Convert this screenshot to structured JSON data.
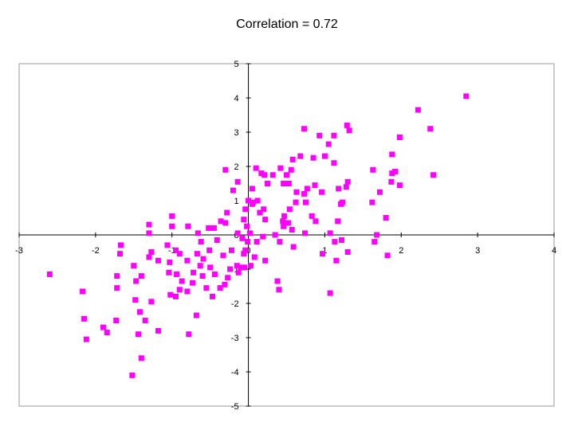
{
  "chart_data": {
    "type": "scatter",
    "title": "Correlation = 0.72",
    "xlabel": "",
    "ylabel": "",
    "xlim": [
      -3,
      4
    ],
    "ylim": [
      -5,
      5
    ],
    "x_ticks": [
      "-3",
      "-2",
      "-1",
      "0",
      "1",
      "2",
      "3",
      "4"
    ],
    "y_ticks": [
      "5",
      "4",
      "3",
      "2",
      "1",
      "0",
      "-1",
      "-2",
      "-3",
      "-4",
      "-5"
    ],
    "grid": false,
    "legend": "none",
    "marker": "square",
    "colors": {
      "marker": "#FF00FF",
      "axes": "#000000",
      "frame": "#9a9a9a",
      "background": "#ffffff"
    },
    "series": [
      {
        "points": [
          [
            2.85,
            4.05
          ],
          [
            2.22,
            3.65
          ],
          [
            2.38,
            3.1
          ],
          [
            2.42,
            1.75
          ],
          [
            1.98,
            2.85
          ],
          [
            1.88,
            2.35
          ],
          [
            1.92,
            1.85
          ],
          [
            1.88,
            1.8
          ],
          [
            1.98,
            1.45
          ],
          [
            1.87,
            1.55
          ],
          [
            1.72,
            1.25
          ],
          [
            1.8,
            0.5
          ],
          [
            1.82,
            -0.6
          ],
          [
            1.63,
            1.9
          ],
          [
            1.62,
            0.95
          ],
          [
            1.68,
            0.0
          ],
          [
            1.65,
            -0.2
          ],
          [
            1.29,
            3.2
          ],
          [
            1.32,
            3.05
          ],
          [
            1.3,
            1.55
          ],
          [
            1.28,
            1.4
          ],
          [
            1.23,
            0.95
          ],
          [
            1.21,
            0.9
          ],
          [
            1.22,
            -0.15
          ],
          [
            1.3,
            -0.5
          ],
          [
            1.12,
            2.9
          ],
          [
            1.12,
            2.1
          ],
          [
            1.18,
            1.35
          ],
          [
            1.17,
            0.4
          ],
          [
            1.13,
            -0.2
          ],
          [
            1.15,
            -0.75
          ],
          [
            1.05,
            2.65
          ],
          [
            1.0,
            2.3
          ],
          [
            0.93,
            2.9
          ],
          [
            0.85,
            2.25
          ],
          [
            0.96,
            1.25
          ],
          [
            0.87,
            1.45
          ],
          [
            0.77,
            1.35
          ],
          [
            0.73,
            1.2
          ],
          [
            0.75,
            0.95
          ],
          [
            0.83,
            0.55
          ],
          [
            0.88,
            0.4
          ],
          [
            1.07,
            0.05
          ],
          [
            0.97,
            -0.55
          ],
          [
            1.07,
            -1.7
          ],
          [
            0.73,
            3.1
          ],
          [
            0.68,
            2.3
          ],
          [
            0.58,
            2.2
          ],
          [
            0.56,
            1.9
          ],
          [
            0.42,
            1.95
          ],
          [
            0.5,
            1.75
          ],
          [
            0.46,
            1.5
          ],
          [
            0.53,
            1.5
          ],
          [
            0.63,
            1.25
          ],
          [
            0.62,
            0.95
          ],
          [
            0.54,
            0.75
          ],
          [
            0.47,
            0.55
          ],
          [
            0.45,
            0.4
          ],
          [
            0.52,
            0.35
          ],
          [
            0.46,
            0.25
          ],
          [
            0.57,
            0.15
          ],
          [
            0.74,
            0.05
          ],
          [
            0.41,
            -0.2
          ],
          [
            0.59,
            -0.35
          ],
          [
            0.38,
            -1.35
          ],
          [
            0.4,
            -1.6
          ],
          [
            0.32,
            1.75
          ],
          [
            0.21,
            1.75
          ],
          [
            0.17,
            1.8
          ],
          [
            0.1,
            1.95
          ],
          [
            0.25,
            1.5
          ],
          [
            0.05,
            1.35
          ],
          [
            0.12,
            1.0
          ],
          [
            0.06,
            0.95
          ],
          [
            0.15,
            0.65
          ],
          [
            0.2,
            0.75
          ],
          [
            0.22,
            0.45
          ],
          [
            0.35,
            0.0
          ],
          [
            0.19,
            -0.05
          ],
          [
            0.11,
            -0.2
          ],
          [
            0.22,
            -0.75
          ],
          [
            0.08,
            -0.65
          ],
          [
            0.03,
            -0.9
          ],
          [
            0.05,
            0.9
          ],
          [
            0.0,
            1.0
          ],
          [
            -0.04,
            0.75
          ],
          [
            -0.02,
            0.25
          ],
          [
            -0.06,
            0.45
          ],
          [
            0.02,
            0.05
          ],
          [
            -0.01,
            -0.2
          ],
          [
            -0.08,
            -0.1
          ],
          [
            -0.04,
            -0.45
          ],
          [
            -0.06,
            -0.55
          ],
          [
            -0.1,
            -0.95
          ],
          [
            -0.13,
            -1.1
          ],
          [
            -0.05,
            -0.95
          ],
          [
            -0.14,
            1.55
          ],
          [
            -0.3,
            1.9
          ],
          [
            -0.2,
            1.3
          ],
          [
            -0.28,
            0.65
          ],
          [
            -0.36,
            0.4
          ],
          [
            -0.3,
            0.35
          ],
          [
            -0.14,
            0.05
          ],
          [
            -0.22,
            -0.45
          ],
          [
            -0.33,
            -0.6
          ],
          [
            -0.15,
            -0.9
          ],
          [
            -0.24,
            -1.0
          ],
          [
            -0.27,
            -1.25
          ],
          [
            -0.31,
            -1.45
          ],
          [
            -0.37,
            -1.55
          ],
          [
            -0.45,
            0.2
          ],
          [
            -0.52,
            0.2
          ],
          [
            -0.41,
            -0.15
          ],
          [
            -0.51,
            -0.45
          ],
          [
            -0.59,
            -0.7
          ],
          [
            -0.5,
            -0.95
          ],
          [
            -0.44,
            -1.15
          ],
          [
            -0.6,
            -1.2
          ],
          [
            -0.55,
            -1.55
          ],
          [
            -0.47,
            -1.8
          ],
          [
            -0.79,
            0.25
          ],
          [
            -0.66,
            0.05
          ],
          [
            -0.62,
            -0.2
          ],
          [
            -0.67,
            -0.55
          ],
          [
            -0.8,
            -0.75
          ],
          [
            -0.63,
            -0.9
          ],
          [
            -0.72,
            -1.1
          ],
          [
            -0.87,
            -1.35
          ],
          [
            -0.73,
            -1.4
          ],
          [
            -0.8,
            -1.65
          ],
          [
            -0.68,
            -2.35
          ],
          [
            -0.78,
            -2.9
          ],
          [
            -1.0,
            0.55
          ],
          [
            -1.0,
            0.25
          ],
          [
            -1.06,
            -0.3
          ],
          [
            -0.95,
            -0.45
          ],
          [
            -0.9,
            -0.55
          ],
          [
            -1.03,
            -0.8
          ],
          [
            -1.04,
            -1.1
          ],
          [
            -0.94,
            -1.15
          ],
          [
            -0.9,
            -1.6
          ],
          [
            -1.02,
            -1.75
          ],
          [
            -0.95,
            -1.8
          ],
          [
            -1.3,
            0.3
          ],
          [
            -1.3,
            0.05
          ],
          [
            -1.27,
            -0.5
          ],
          [
            -1.3,
            -0.65
          ],
          [
            -1.18,
            -0.75
          ],
          [
            -1.4,
            -1.2
          ],
          [
            -1.27,
            -1.95
          ],
          [
            -1.42,
            -2.25
          ],
          [
            -1.35,
            -2.5
          ],
          [
            -1.44,
            -2.9
          ],
          [
            -1.18,
            -2.8
          ],
          [
            -1.4,
            -3.6
          ],
          [
            -1.52,
            -4.1
          ],
          [
            -1.5,
            -0.9
          ],
          [
            -1.47,
            -1.35
          ],
          [
            -1.48,
            -1.9
          ],
          [
            -1.67,
            -0.3
          ],
          [
            -1.68,
            -0.55
          ],
          [
            -1.72,
            -1.2
          ],
          [
            -1.72,
            -1.55
          ],
          [
            -1.73,
            -2.5
          ],
          [
            -1.9,
            -2.7
          ],
          [
            -1.85,
            -2.85
          ],
          [
            -2.17,
            -1.65
          ],
          [
            -2.15,
            -2.45
          ],
          [
            -2.12,
            -3.05
          ],
          [
            -2.6,
            -1.15
          ]
        ]
      }
    ]
  }
}
